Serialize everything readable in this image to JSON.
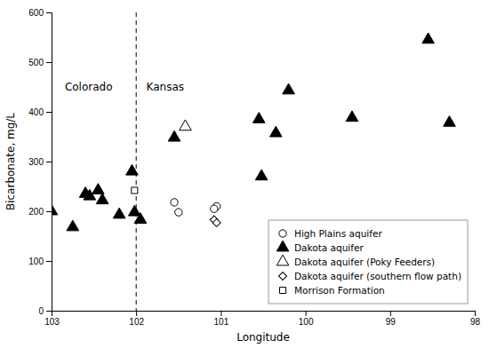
{
  "chart_data": {
    "type": "scatter",
    "xlabel": "Longitude",
    "ylabel": "Bicarbonate, mg/L",
    "xlim": [
      103,
      98
    ],
    "ylim": [
      0,
      600
    ],
    "xticks": [
      103,
      102,
      101,
      100,
      99,
      98
    ],
    "yticks": [
      0,
      100,
      200,
      300,
      400,
      500,
      600
    ],
    "legend": "lower right",
    "series": [
      {
        "name": "High Plains aquifer",
        "marker": "circle",
        "color": "white",
        "x": [
          101.55,
          101.5,
          101.05,
          101.08
        ],
        "values": [
          218,
          198,
          210,
          205
        ]
      },
      {
        "name": "Dakota aquifer",
        "marker": "triangle",
        "color": "black",
        "x": [
          103.0,
          102.75,
          102.6,
          102.55,
          102.45,
          102.4,
          102.2,
          102.05,
          102.02,
          101.95,
          101.55,
          100.55,
          100.52,
          100.35,
          100.2,
          99.45,
          98.55,
          98.3
        ],
        "values": [
          200,
          168,
          235,
          230,
          242,
          222,
          193,
          280,
          198,
          183,
          348,
          385,
          270,
          357,
          443,
          388,
          545,
          378
        ]
      },
      {
        "name": "Dakota aquifer (Poky Feeders)",
        "marker": "triangle",
        "color": "white",
        "x": [
          101.42
        ],
        "values": [
          370
        ]
      },
      {
        "name": "Dakota aquifer (southern flow path)",
        "marker": "diamond",
        "color": "white",
        "x": [
          101.08,
          101.05
        ],
        "values": [
          183,
          177
        ]
      },
      {
        "name": "Morrison Formation",
        "marker": "square",
        "color": "white",
        "x": [
          102.02
        ],
        "values": [
          242
        ]
      }
    ],
    "annotations": [
      {
        "type": "vline",
        "x": 102,
        "line_style": "dashed"
      },
      {
        "text": "Colorado",
        "x": 102.28,
        "y": 450
      },
      {
        "text": "Kansas",
        "x": 101.88,
        "y": 450
      }
    ]
  }
}
